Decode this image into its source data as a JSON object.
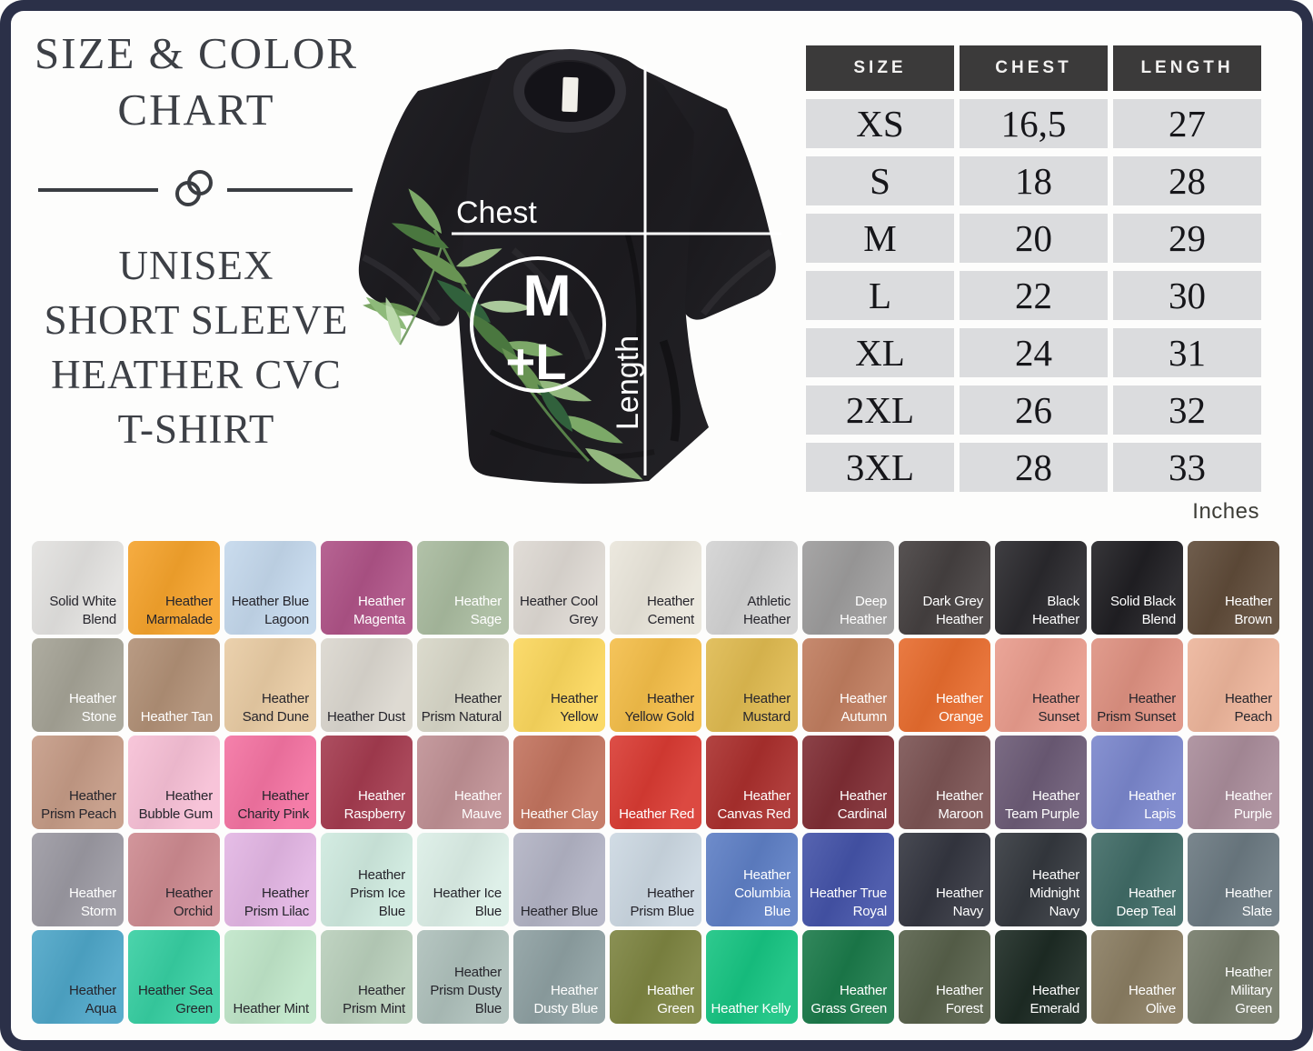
{
  "theme": {
    "frame_border": "#2b3048",
    "background": "#fdfdfc",
    "title_color": "#3d4046",
    "table_header_bg": "#3b3a3a",
    "table_row_bg": "#dbdcde",
    "swatch_text_dark": "#26252c",
    "swatch_text_light": "#ffffff"
  },
  "header": {
    "title_line1": "SIZE & COLOR",
    "title_line2": "CHART",
    "subtitle_lines": [
      "UNISEX",
      "SHORT SLEEVE",
      "HEATHER CVC",
      "T-SHIRT"
    ]
  },
  "shirt_diagram": {
    "chest_label": "Chest",
    "length_label": "Length",
    "logo_top": "M",
    "logo_bottom": "+L"
  },
  "size_table": {
    "headers": [
      "SIZE",
      "CHEST",
      "LENGTH"
    ],
    "rows": [
      [
        "XS",
        "16,5",
        "27"
      ],
      [
        "S",
        "18",
        "28"
      ],
      [
        "M",
        "20",
        "29"
      ],
      [
        "L",
        "22",
        "30"
      ],
      [
        "XL",
        "24",
        "31"
      ],
      [
        "2XL",
        "26",
        "32"
      ],
      [
        "3XL",
        "28",
        "33"
      ]
    ],
    "unit_note": "Inches"
  },
  "color_grid": {
    "rows": [
      [
        {
          "name": "Solid White Blend",
          "color": "#e3e2e0",
          "text": "dark"
        },
        {
          "name": "Heather Marmalade",
          "color": "#f5a32c",
          "text": "dark"
        },
        {
          "name": "Heather Blue Lagoon",
          "color": "#c4d8ec",
          "text": "dark"
        },
        {
          "name": "Heather Magenta",
          "color": "#af5387",
          "text": "light"
        },
        {
          "name": "Heather Sage",
          "color": "#a9bb9f",
          "text": "light"
        },
        {
          "name": "Heather Cool Grey",
          "color": "#ded9d3",
          "text": "dark"
        },
        {
          "name": "Heather Cement",
          "color": "#eae6db",
          "text": "dark"
        },
        {
          "name": "Athletic Heather",
          "color": "#d3d3d3",
          "text": "dark"
        },
        {
          "name": "Deep Heather",
          "color": "#9d9c9c",
          "text": "light"
        },
        {
          "name": "Dark Grey Heather",
          "color": "#454040",
          "text": "light"
        },
        {
          "name": "Black Heather",
          "color": "#2a292d",
          "text": "light"
        },
        {
          "name": "Solid Black Blend",
          "color": "#201f23",
          "text": "light"
        },
        {
          "name": "Heather Brown",
          "color": "#5f4b39",
          "text": "light"
        }
      ],
      [
        {
          "name": "Heather Stone",
          "color": "#a5a396",
          "text": "light"
        },
        {
          "name": "Heather Tan",
          "color": "#b19076",
          "text": "light"
        },
        {
          "name": "Heather Sand Dune",
          "color": "#e9cca4",
          "text": "dark"
        },
        {
          "name": "Heather Dust",
          "color": "#dbd7cf",
          "text": "dark"
        },
        {
          "name": "Heather Prism Natural",
          "color": "#d8d7c8",
          "text": "dark"
        },
        {
          "name": "Heather Yellow",
          "color": "#fbd75d",
          "text": "dark"
        },
        {
          "name": "Heather Yellow Gold",
          "color": "#f4be49",
          "text": "dark"
        },
        {
          "name": "Heather Mustard",
          "color": "#dfba50",
          "text": "dark"
        },
        {
          "name": "Heather Autumn",
          "color": "#c07d5f",
          "text": "light"
        },
        {
          "name": "Heather Orange",
          "color": "#e76c2e",
          "text": "light"
        },
        {
          "name": "Heather Sunset",
          "color": "#e99c8d",
          "text": "dark"
        },
        {
          "name": "Heather Prism Sunset",
          "color": "#de9181",
          "text": "dark"
        },
        {
          "name": "Heather Peach",
          "color": "#edb59b",
          "text": "dark"
        }
      ],
      [
        {
          "name": "Heather Prism Peach",
          "color": "#c59b86",
          "text": "dark"
        },
        {
          "name": "Heather Bubble Gum",
          "color": "#f7c0d6",
          "text": "dark"
        },
        {
          "name": "Heather Charity Pink",
          "color": "#f473a2",
          "text": "dark"
        },
        {
          "name": "Heather Raspberry",
          "color": "#a43b4f",
          "text": "light"
        },
        {
          "name": "Heather Mauve",
          "color": "#bf9094",
          "text": "light"
        },
        {
          "name": "Heather Clay",
          "color": "#c2735e",
          "text": "light"
        },
        {
          "name": "Heather Red",
          "color": "#d93b33",
          "text": "light"
        },
        {
          "name": "Heather Canvas Red",
          "color": "#aa2f2d",
          "text": "light"
        },
        {
          "name": "Heather Cardinal",
          "color": "#7f2d34",
          "text": "light"
        },
        {
          "name": "Heather Maroon",
          "color": "#7b5353",
          "text": "light"
        },
        {
          "name": "Heather Team Purple",
          "color": "#6c5b76",
          "text": "light"
        },
        {
          "name": "Heather Lapis",
          "color": "#7a86cc",
          "text": "light"
        },
        {
          "name": "Heather Purple",
          "color": "#a98c9a",
          "text": "light"
        }
      ],
      [
        {
          "name": "Heather Storm",
          "color": "#9b99a2",
          "text": "light"
        },
        {
          "name": "Heather Orchid",
          "color": "#cd8a90",
          "text": "dark"
        },
        {
          "name": "Heather Prism Lilac",
          "color": "#e3b6e4",
          "text": "dark"
        },
        {
          "name": "Heather Prism Ice Blue",
          "color": "#cfeadf",
          "text": "dark"
        },
        {
          "name": "Heather Ice Blue",
          "color": "#dcefe7",
          "text": "dark"
        },
        {
          "name": "Heather Blue",
          "color": "#b2b3c4",
          "text": "dark"
        },
        {
          "name": "Heather Prism Blue",
          "color": "#ccd8e2",
          "text": "dark"
        },
        {
          "name": "Heather Columbia Blue",
          "color": "#5e7fc5",
          "text": "light"
        },
        {
          "name": "Heather True Royal",
          "color": "#4453a8",
          "text": "light"
        },
        {
          "name": "Heather Navy",
          "color": "#343640",
          "text": "light"
        },
        {
          "name": "Heather Midnight Navy",
          "color": "#34383e",
          "text": "light"
        },
        {
          "name": "Heather Deep Teal",
          "color": "#406b66",
          "text": "light"
        },
        {
          "name": "Heather Slate",
          "color": "#6b7981",
          "text": "light"
        }
      ],
      [
        {
          "name": "Heather Aqua",
          "color": "#4ea6c8",
          "text": "dark"
        },
        {
          "name": "Heather Sea Green",
          "color": "#37cfa2",
          "text": "dark"
        },
        {
          "name": "Heather Mint",
          "color": "#c0e6c9",
          "text": "dark"
        },
        {
          "name": "Heather Prism Mint",
          "color": "#b9cfbb",
          "text": "dark"
        },
        {
          "name": "Heather Prism Dusty Blue",
          "color": "#aec0bb",
          "text": "dark"
        },
        {
          "name": "Heather Dusty Blue",
          "color": "#8ea0a2",
          "text": "light"
        },
        {
          "name": "Heather Green",
          "color": "#7d8441",
          "text": "light"
        },
        {
          "name": "Heather Kelly",
          "color": "#17c482",
          "text": "light"
        },
        {
          "name": "Heather Grass Green",
          "color": "#1b7a4a",
          "text": "light"
        },
        {
          "name": "Heather Forest",
          "color": "#57604a",
          "text": "light"
        },
        {
          "name": "Heather Emerald",
          "color": "#1d2b24",
          "text": "light"
        },
        {
          "name": "Heather Olive",
          "color": "#8a7d62",
          "text": "light"
        },
        {
          "name": "Heather Military Green",
          "color": "#757b6a",
          "text": "light"
        }
      ]
    ]
  }
}
